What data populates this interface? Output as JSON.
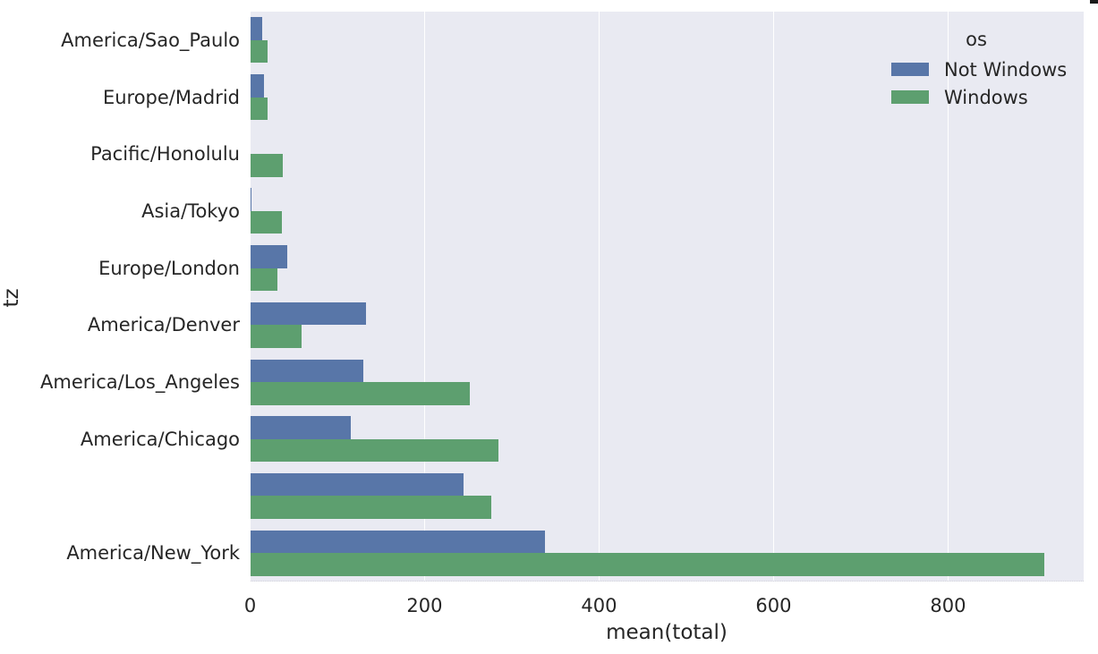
{
  "chart_data": {
    "type": "bar",
    "orientation": "horizontal",
    "title": "",
    "xlabel": "mean(total)",
    "ylabel": "tz",
    "xlim": [
      0,
      955
    ],
    "x_ticks": [
      0,
      200,
      400,
      600,
      800
    ],
    "grid": true,
    "legend": {
      "title": "os",
      "position": "upper-right"
    },
    "categories": [
      "America/Sao_Paulo",
      "Europe/Madrid",
      "Pacific/Honolulu",
      "Asia/Tokyo",
      "Europe/London",
      "America/Denver",
      "America/Los_Angeles",
      "America/Chicago",
      "",
      "America/New_York"
    ],
    "series": [
      {
        "name": "Not Windows",
        "color": "#5876a8",
        "values": [
          14,
          16,
          0,
          2,
          43,
          133,
          130,
          115,
          245,
          338
        ]
      },
      {
        "name": "Windows",
        "color": "#5d9f6f",
        "values": [
          20,
          20,
          37,
          36,
          31,
          59,
          252,
          285,
          276,
          910
        ]
      }
    ]
  },
  "colors": {
    "plot_background": "#e9eaf2",
    "gridline": "#ffffff",
    "text": "#262626"
  }
}
